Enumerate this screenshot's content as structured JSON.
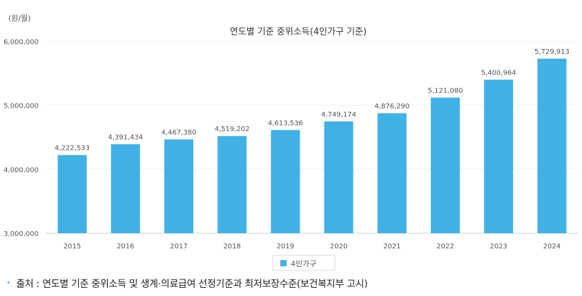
{
  "chart_data": {
    "type": "bar",
    "title": "연도별 기준 중위소득(4인가구 기준)",
    "unit_label": "(원/월)",
    "categories": [
      "2015",
      "2016",
      "2017",
      "2018",
      "2019",
      "2020",
      "2021",
      "2022",
      "2023",
      "2024"
    ],
    "series": [
      {
        "name": "4인가구",
        "values": [
          4222533,
          4391434,
          4467380,
          4519202,
          4613536,
          4749174,
          4876290,
          5121080,
          5400964,
          5729913
        ]
      }
    ],
    "value_labels": [
      "4,222,533",
      "4,391,434",
      "4,467,380",
      "4,519,202",
      "4,613,536",
      "4,749,174",
      "4,876,290",
      "5,121,080",
      "5,400,964",
      "5,729,913"
    ],
    "ylim": [
      3000000,
      6000000
    ],
    "yticks": [
      3000000,
      4000000,
      5000000,
      6000000
    ],
    "ytick_labels": [
      "3,000,000",
      "4,000,000",
      "5,000,000",
      "6,000,000"
    ],
    "grid": true,
    "legend_position": "bottom-center",
    "bar_color": "#3fb1e5"
  },
  "source": {
    "marker": "‣",
    "text": "출처 : 연도별 기준 중위소득 및 생계·의료급여 선정기준과 최저보장수준(보건복지부 고시)"
  }
}
